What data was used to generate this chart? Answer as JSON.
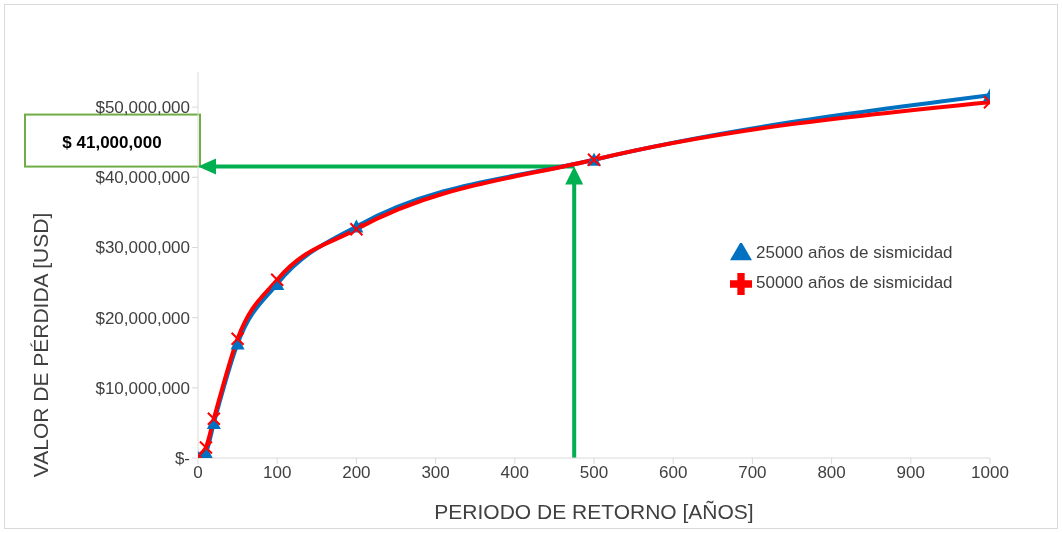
{
  "chart_data": {
    "type": "line",
    "xlabel": "PERIODO DE RETORNO [AÑOS]",
    "ylabel": "VALOR DE PÉRDIDA [USD]",
    "x": [
      1,
      10,
      20,
      50,
      100,
      200,
      500,
      1000
    ],
    "series": [
      {
        "name": "25000 años de sismicidad",
        "color": "#0070c0",
        "marker": "triangle",
        "values": [
          0,
          800000,
          5000000,
          16300000,
          24800000,
          33000000,
          42500000,
          51700000
        ]
      },
      {
        "name": "50000 años de sismicidad",
        "color": "#ff0000",
        "marker": "cross",
        "values": [
          300000,
          1500000,
          5600000,
          17000000,
          25400000,
          32600000,
          42500000,
          50700000
        ]
      }
    ],
    "xlim": [
      0,
      1000
    ],
    "xticks": [
      0,
      100,
      200,
      300,
      400,
      500,
      600,
      700,
      800,
      900,
      1000
    ],
    "ylim": [
      0,
      55000000
    ],
    "yticks": [
      {
        "value": 0,
        "label": "$-"
      },
      {
        "value": 10000000,
        "label": "$10,000,000"
      },
      {
        "value": 20000000,
        "label": "$20,000,000"
      },
      {
        "value": 30000000,
        "label": "$30,000,000"
      },
      {
        "value": 40000000,
        "label": "$40,000,000"
      },
      {
        "value": 50000000,
        "label": "$50,000,000"
      }
    ],
    "grid": false,
    "legend": "right",
    "annotations": [
      "$ 41,000,000"
    ]
  }
}
